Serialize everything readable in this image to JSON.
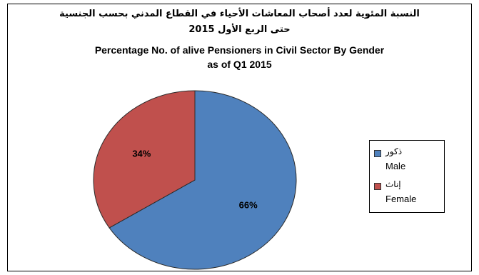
{
  "chart_data": {
    "type": "pie",
    "title_ar_line1": "النسبة المئوية لعدد أصحاب المعاشات الأحياء في القطاع المدني بحسب الجنسية",
    "title_ar_line2": "حتى الربع الأول 2015",
    "title_en_line1": "Percentage No. of alive Pensioners in Civil Sector By Gender",
    "title_en_line2": "as of Q1 2015",
    "slices": [
      {
        "label_ar": "ذكور",
        "label_en": "Male",
        "value": 66,
        "data_label": "66%",
        "color": "#4F81BD"
      },
      {
        "label_ar": "إناث",
        "label_en": "Female",
        "value": 34,
        "data_label": "34%",
        "color": "#C0504D"
      }
    ],
    "legend_position": "right"
  }
}
